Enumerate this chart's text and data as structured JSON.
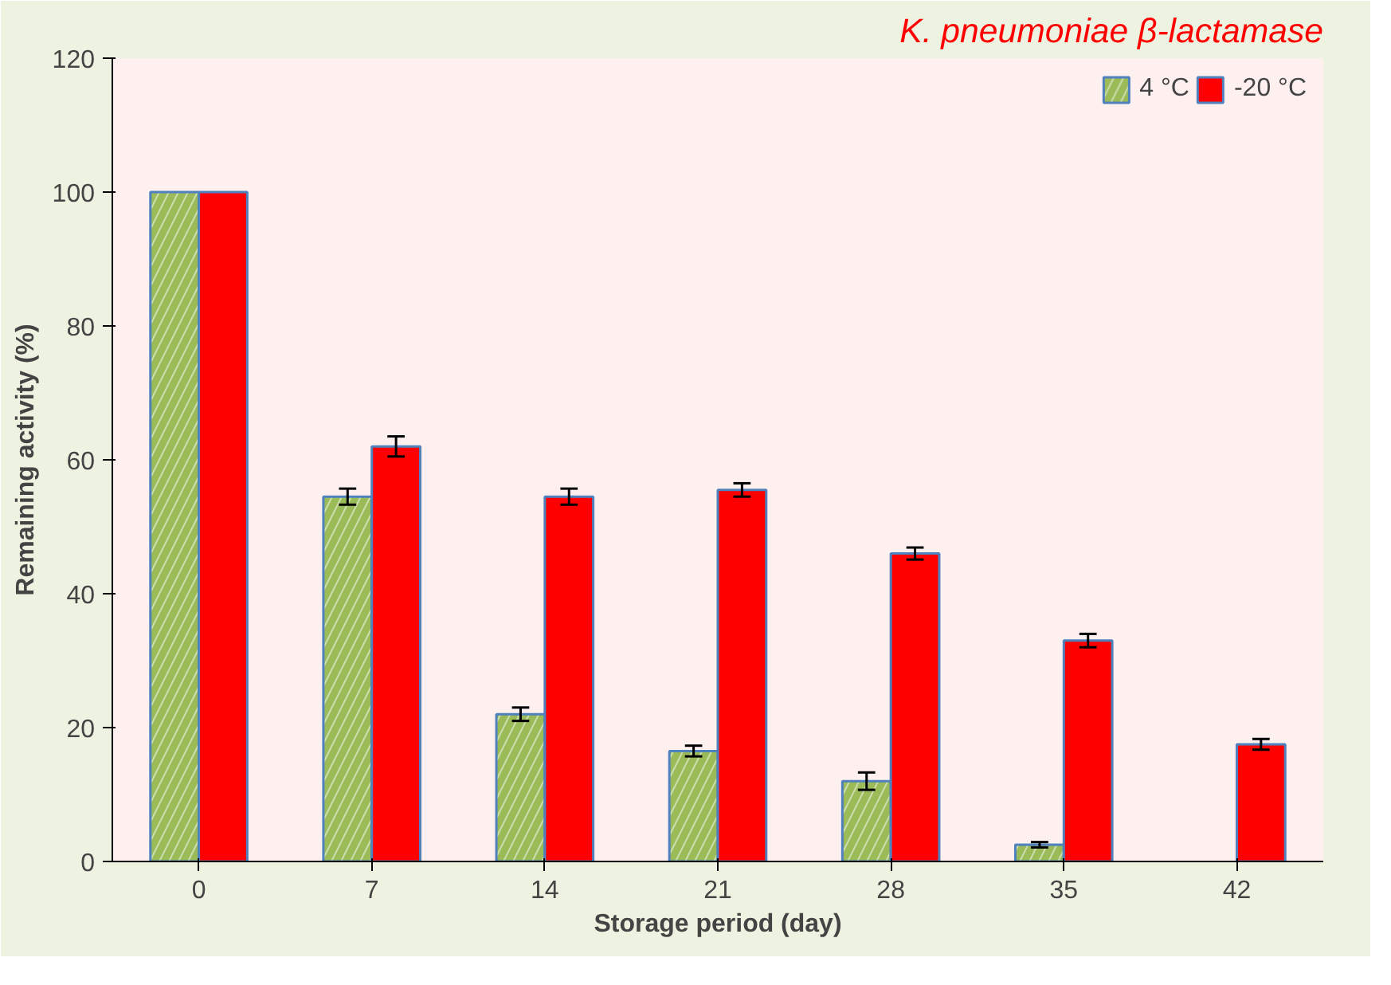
{
  "chart_data": {
    "type": "bar",
    "title": "K. pneumoniae β-lactamase",
    "xlabel": "Storage period (day)",
    "ylabel": "Remaining activity (%)",
    "categories": [
      "0",
      "7",
      "14",
      "21",
      "28",
      "35",
      "42"
    ],
    "series": [
      {
        "name": "4 °C",
        "color": "#9bbb59",
        "values": [
          100,
          54.5,
          22,
          16.5,
          12,
          2.5,
          null
        ],
        "errors": [
          null,
          1.2,
          1,
          0.8,
          1.3,
          0.4,
          null
        ]
      },
      {
        "name": "-20 °C",
        "color": "#ff0000",
        "values": [
          100,
          62,
          54.5,
          55.5,
          46,
          33,
          17.5
        ],
        "errors": [
          null,
          1.5,
          1.2,
          1,
          0.9,
          1,
          0.8
        ]
      }
    ],
    "ylim": [
      0,
      120
    ],
    "yticks": [
      0,
      20,
      40,
      60,
      80,
      100,
      120
    ],
    "grid": false,
    "legend": "top right"
  }
}
